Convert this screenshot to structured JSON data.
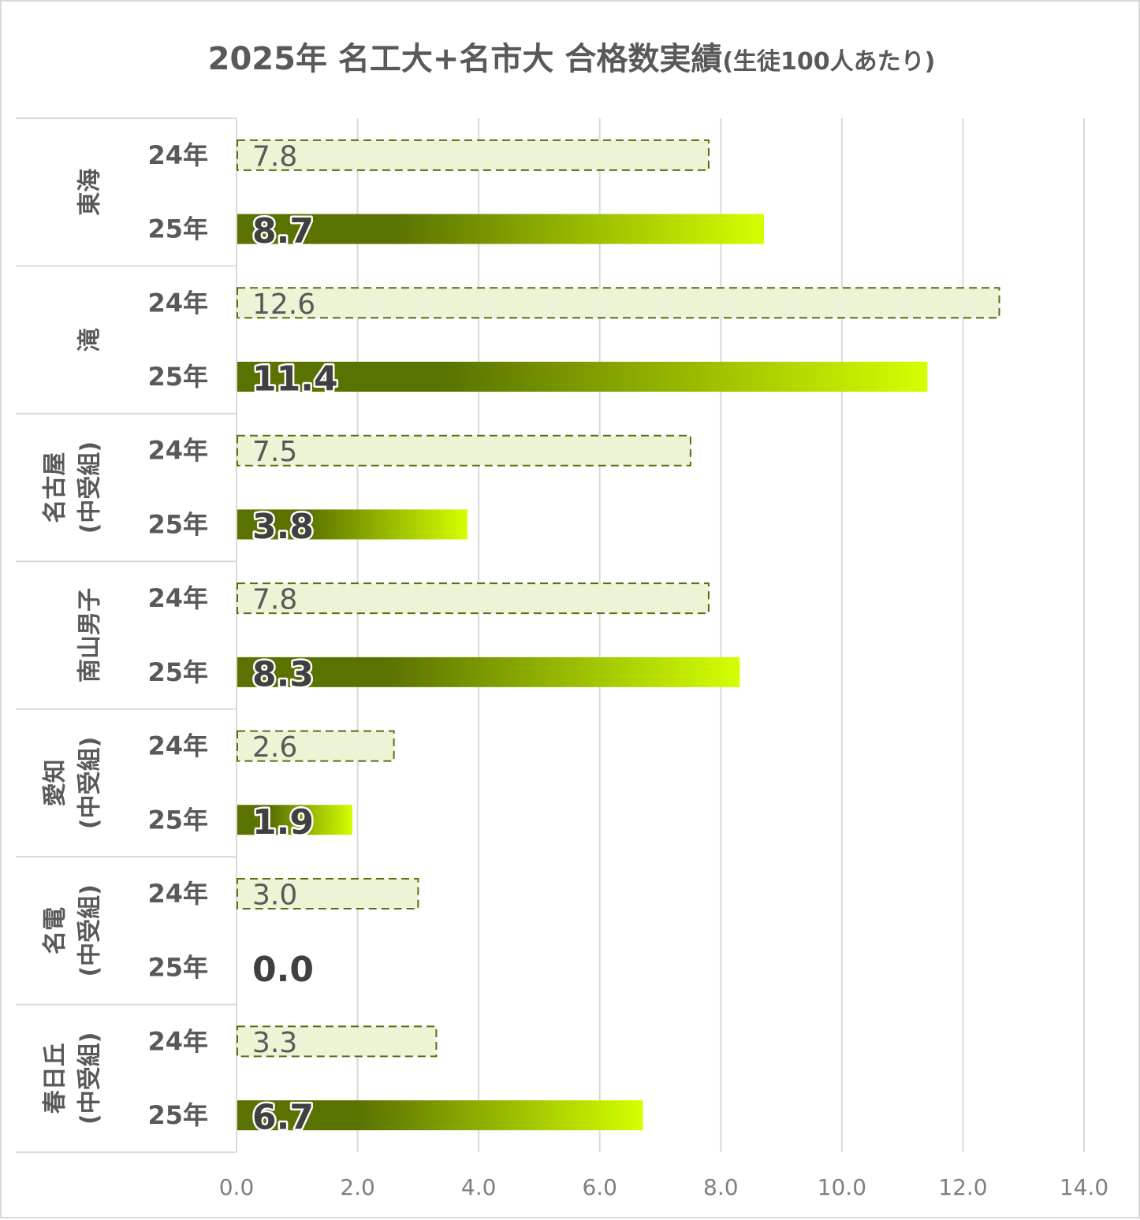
{
  "chart_data": {
    "type": "bar",
    "orientation": "horizontal",
    "title": "2025年 名工大+名市大 合格数実績",
    "subtitle": "(生徒100人あたり)",
    "xlim": [
      0,
      14
    ],
    "x_ticks": [
      "0.0",
      "2.0",
      "4.0",
      "6.0",
      "8.0",
      "10.0",
      "12.0",
      "14.0"
    ],
    "grid": true,
    "groups": [
      {
        "name": "東海",
        "lines": [
          "東海"
        ],
        "bars": [
          {
            "year": "24年",
            "value": 7.8,
            "label": "7.8"
          },
          {
            "year": "25年",
            "value": 8.7,
            "label": "8.7"
          }
        ]
      },
      {
        "name": "滝",
        "lines": [
          "滝"
        ],
        "bars": [
          {
            "year": "24年",
            "value": 12.6,
            "label": "12.6"
          },
          {
            "year": "25年",
            "value": 11.4,
            "label": "11.4"
          }
        ]
      },
      {
        "name": "名古屋(中受組)",
        "lines": [
          "名古屋",
          "(中受組)"
        ],
        "bars": [
          {
            "year": "24年",
            "value": 7.5,
            "label": "7.5"
          },
          {
            "year": "25年",
            "value": 3.8,
            "label": "3.8"
          }
        ]
      },
      {
        "name": "南山男子",
        "lines": [
          "南山男子"
        ],
        "bars": [
          {
            "year": "24年",
            "value": 7.8,
            "label": "7.8"
          },
          {
            "year": "25年",
            "value": 8.3,
            "label": "8.3"
          }
        ]
      },
      {
        "name": "愛知(中受組)",
        "lines": [
          "愛知",
          "(中受組)"
        ],
        "bars": [
          {
            "year": "24年",
            "value": 2.6,
            "label": "2.6"
          },
          {
            "year": "25年",
            "value": 1.9,
            "label": "1.9"
          }
        ]
      },
      {
        "name": "名電(中受組)",
        "lines": [
          "名電",
          "(中受組)"
        ],
        "bars": [
          {
            "year": "24年",
            "value": 3.0,
            "label": "3.0"
          },
          {
            "year": "25年",
            "value": 0.0,
            "label": "0.0"
          }
        ]
      },
      {
        "name": "春日丘(中受組)",
        "lines": [
          "春日丘",
          "(中受組)"
        ],
        "bars": [
          {
            "year": "24年",
            "value": 3.3,
            "label": "3.3"
          },
          {
            "year": "25年",
            "value": 6.7,
            "label": "6.7"
          }
        ]
      }
    ],
    "colors": {
      "prev_fill": "#ebf5d5",
      "prev_border": "#5a6e0f",
      "curr_gradient_start": "#5a7200",
      "curr_gradient_end": "#d4ff00",
      "grid": "#d9d9d9",
      "text": "#595959",
      "curr_label": "#404040"
    }
  }
}
